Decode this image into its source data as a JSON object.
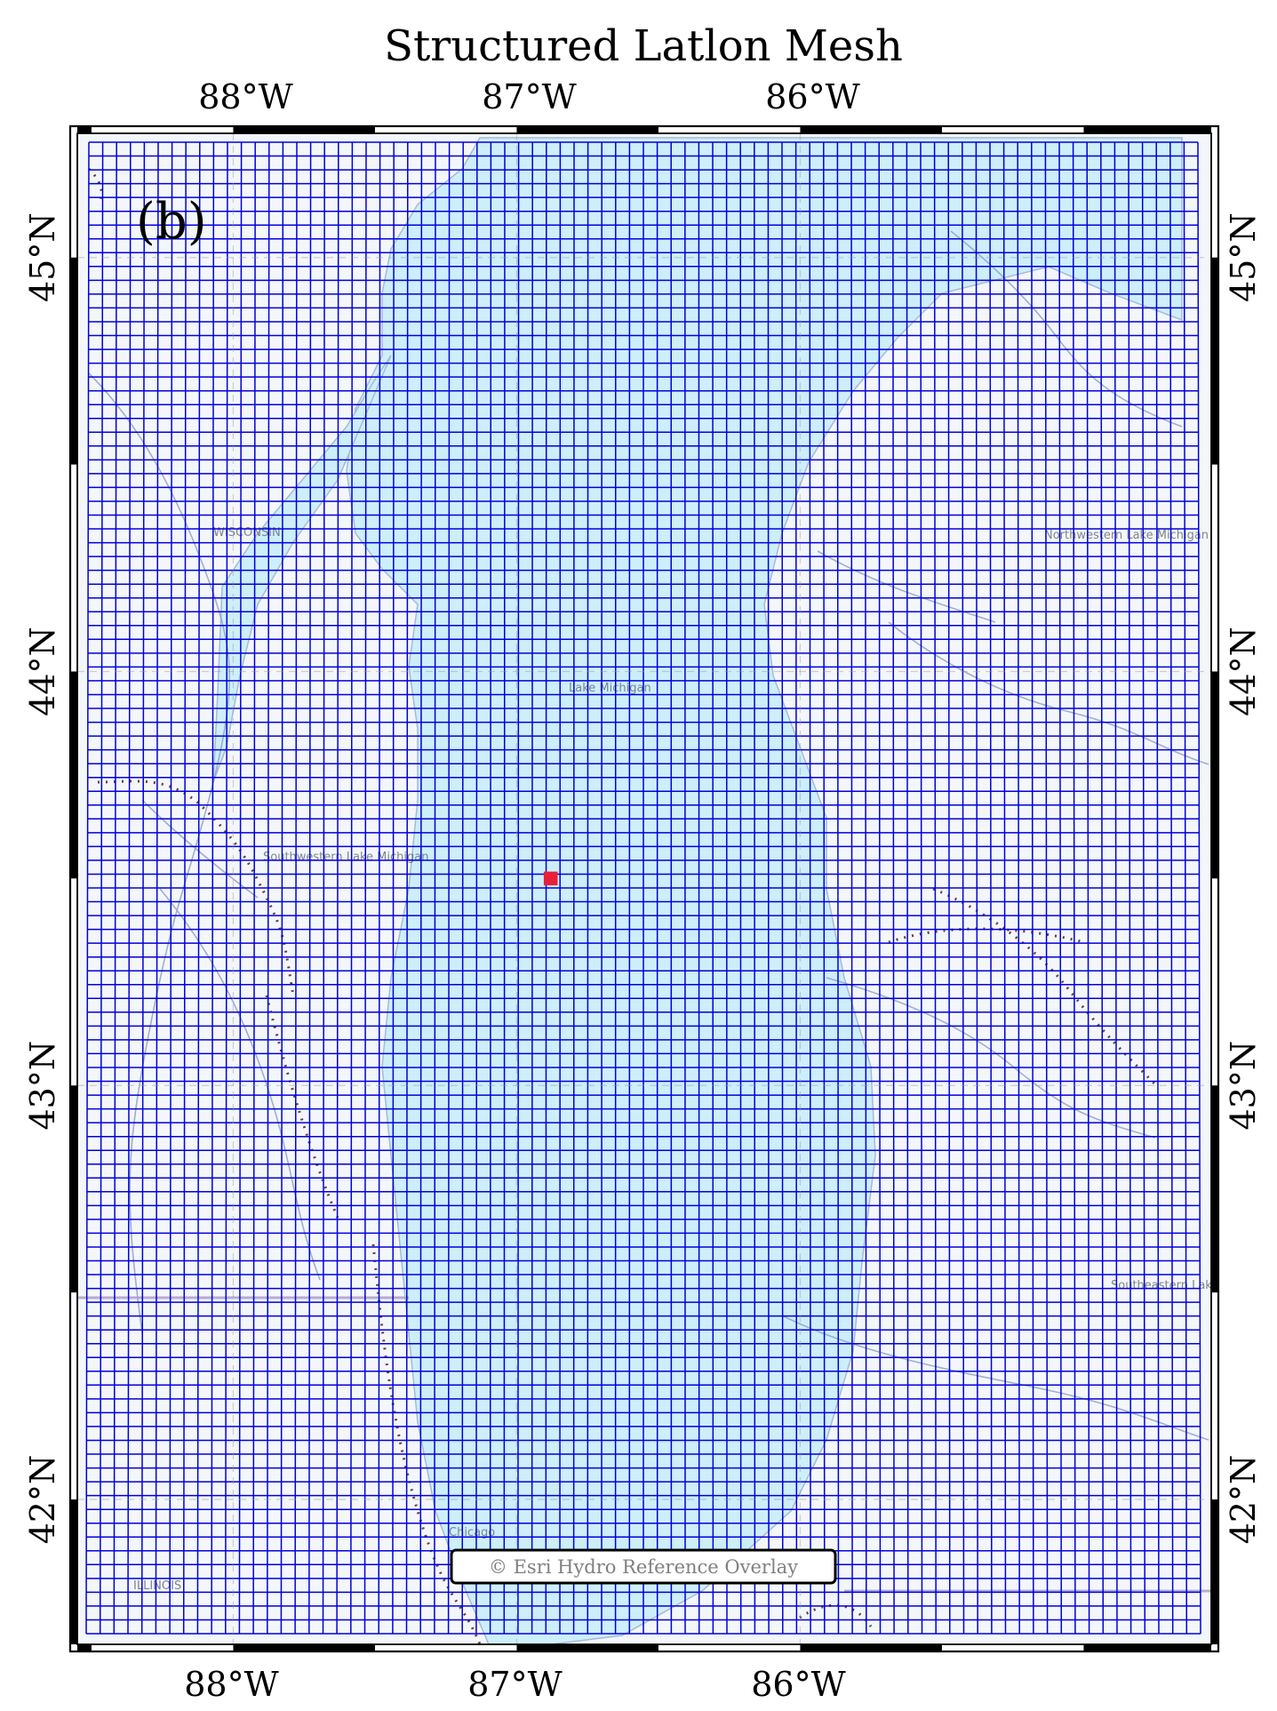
{
  "title": "Structured Latlon Mesh",
  "panel_label": "(b)",
  "attribution": "© Esri Hydro Reference Overlay",
  "map": {
    "lon_range": [
      -88.55,
      -84.55
    ],
    "lat_range": [
      41.65,
      45.3
    ],
    "lon_ticks": [
      {
        "value": -88,
        "label": "88°W"
      },
      {
        "value": -87,
        "label": "87°W"
      },
      {
        "value": -86,
        "label": "86°W"
      }
    ],
    "lat_ticks": [
      {
        "value": 45,
        "label": "45°N"
      },
      {
        "value": 44,
        "label": "44°N"
      },
      {
        "value": 43,
        "label": "43°N"
      },
      {
        "value": 42,
        "label": "42°N"
      }
    ],
    "mesh": {
      "type": "structured latlon",
      "columns": 80,
      "rows": 108,
      "line_color": "#0000dd"
    },
    "highlighted_cell": {
      "lon": -86.88,
      "lat": 43.5,
      "color": "#e8203a"
    },
    "basemap_labels": [
      "WISCONSIN",
      "Lake Michigan",
      "Northwestern Lake Michigan",
      "Southwestern Lake Michigan",
      "Southeastern Lake Michigan",
      "ILLINOIS",
      "Chicago"
    ],
    "colors": {
      "lake": "#cdeffa",
      "land": "#f4f7f9",
      "frame": "#000000"
    }
  }
}
